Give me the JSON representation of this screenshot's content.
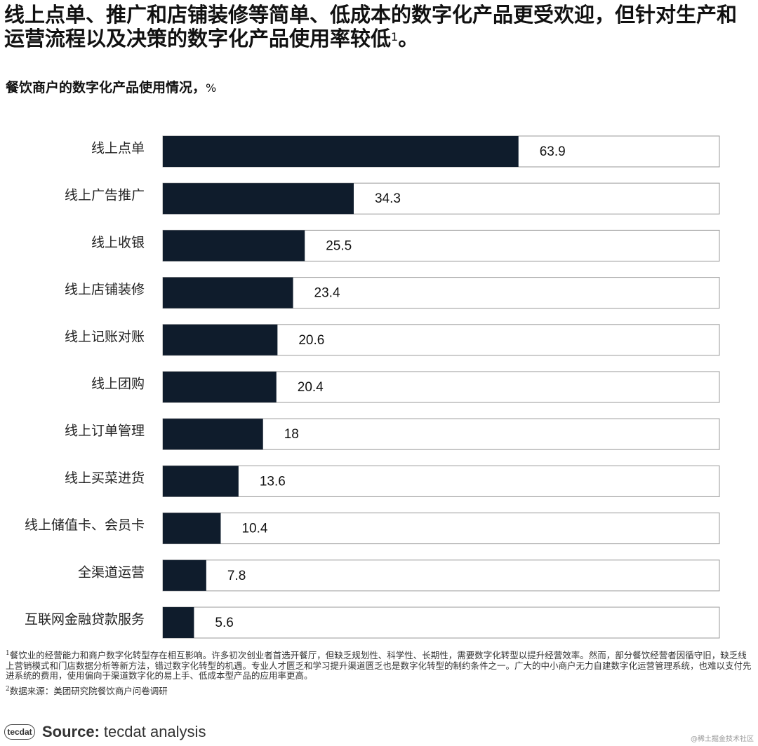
{
  "header": {
    "title": "线上点单、推广和店铺装修等简单、低成本的数字化产品更受欢迎，但针对生产和运营流程以及决策的数字化产品使用率较低",
    "title_sup": "1",
    "title_end": "。",
    "subtitle": "餐饮商户的数字化产品使用情况，",
    "subtitle_unit": "%"
  },
  "chart_data": {
    "type": "bar",
    "orientation": "horizontal",
    "title": "餐饮商户的数字化产品使用情况，%",
    "categories": [
      "线上点单",
      "线上广告推广",
      "线上收银",
      "线上店铺装修",
      "线上记账对账",
      "线上团购",
      "线上订单管理",
      "线上买菜进货",
      "线上储值卡、会员卡",
      "全渠道运营",
      "互联网金融贷款服务"
    ],
    "values": [
      63.9,
      34.3,
      25.5,
      23.4,
      20.6,
      20.4,
      18,
      13.6,
      10.4,
      7.8,
      5.6
    ],
    "xlim": [
      0,
      100
    ],
    "bar_color": "#0f1c2c",
    "track_color": "#ffffff",
    "track_border": "#9a9a9a"
  },
  "footnotes": {
    "note1_marker": "1",
    "note1": "餐饮业的经营能力和商户数字化转型存在相互影响。许多初次创业者首选开餐厅，但缺乏规划性、科学性、长期性，需要数字化转型以提升经营效率。然而，部分餐饮经营者因循守旧，缺乏线上营销模式和门店数据分析等新方法，错过数字化转型的机遇。专业人才匮乏和学习提升渠道匮乏也是数字化转型的制约条件之一。广大的中小商户无力自建数字化运营管理系统，也难以支付先进系统的费用，使用偏向于渠道数字化的易上手、低成本型产品的应用率更高。",
    "note2_marker": "2",
    "note2": "数据来源：美团研究院餐饮商户问卷调研"
  },
  "source": {
    "logo_text": "tecdat",
    "label": "Source:",
    "text": "tecdat analysis"
  },
  "watermark": "@稀土掘金技术社区"
}
